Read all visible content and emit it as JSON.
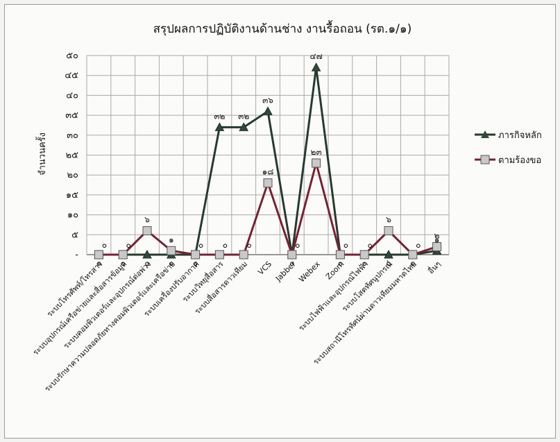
{
  "chart_data": {
    "type": "line",
    "title": "สรุปผลการปฏิบัติงานด้านช่าง งานรื้อถอน (รต.๑/๑)",
    "xlabel": "",
    "ylabel": "จำนวนครั้ง",
    "ylim": [
      0,
      50
    ],
    "yticks": [
      "-",
      "๕",
      "๑๐",
      "๑๕",
      "๒๐",
      "๒๕",
      "๓๐",
      "๓๕",
      "๔๐",
      "๔๕",
      "๕๐"
    ],
    "grid": true,
    "legend_position": "right",
    "categories": [
      "ระบบโทรศัพท์/โทรสาร",
      "ระบบอุปกรณ์เครือข่ายและสื่อสารข้อมูล",
      "ระบบคอมพิวเตอร์และอุปกรณ์ต่อพ่วง",
      "ระบบรักษาความปลอดภัยทางคอมพิวเตอร์และเครือข่าย",
      "ระบบเครื่องปรับอากาศ",
      "ระบบวิทยุสื่อสาร",
      "ระบบสื่อสารดาวเทียม",
      "VCS",
      "Jabber",
      "Webex",
      "Zoom",
      "ระบบไฟฟ้าและอุปกรณ์ไฟฟ้า",
      "ระบบโสตทัศนูปกรณ์",
      "ระบบสถานีโทรทัศน์ผ่านดาวเทียมมหาดไทย",
      "อื่นๆ"
    ],
    "series": [
      {
        "name": "ภารกิจหลัก",
        "values": [
          0,
          0,
          0,
          0,
          0,
          32,
          32,
          36,
          0,
          47,
          0,
          0,
          0,
          0,
          1
        ],
        "labels": [
          "๐",
          "๐",
          "๐",
          "๐",
          "๐",
          "๓๒",
          "๓๒",
          "๓๖",
          "๐",
          "๔๗",
          "๐",
          "๐",
          "๐",
          "๐",
          "๑"
        ],
        "marker": "triangle",
        "color": "#263a2e"
      },
      {
        "name": "ตามร้องขอ",
        "values": [
          0,
          0,
          6,
          1,
          0,
          0,
          0,
          18,
          0,
          23,
          0,
          0,
          6,
          0,
          2
        ],
        "labels": [
          "๐",
          "๐",
          "๖",
          "๑",
          "๐",
          "๐",
          "๐",
          "๑๘",
          "๐",
          "๒๓",
          "๐",
          "๐",
          "๖",
          "๐",
          "๒"
        ],
        "marker": "square",
        "color": "#7a2030"
      }
    ]
  }
}
